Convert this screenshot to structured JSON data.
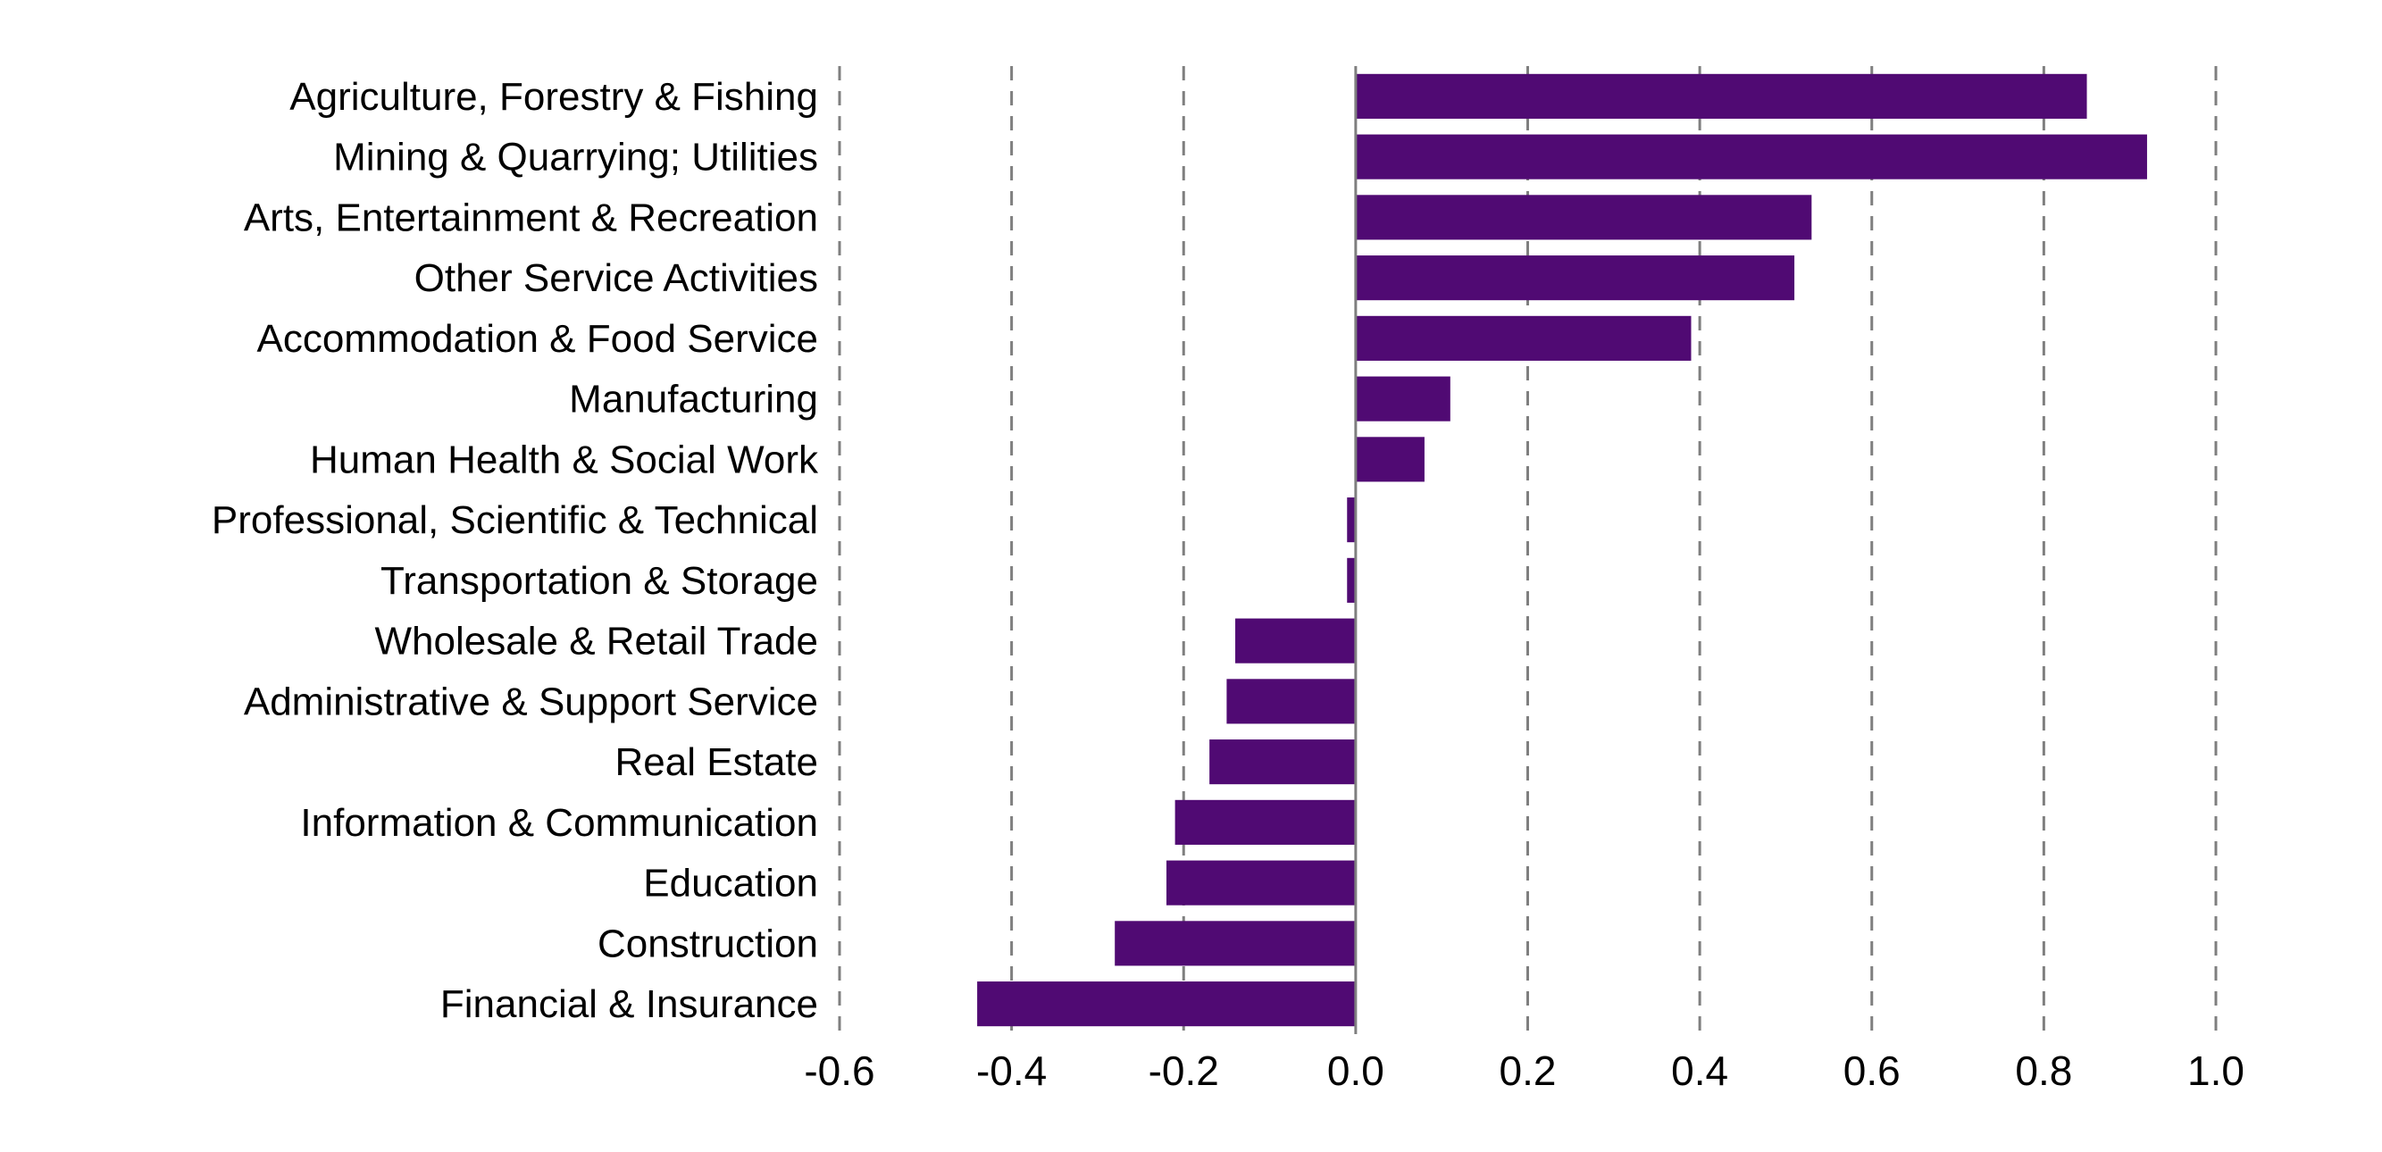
{
  "chart_data": {
    "type": "bar",
    "orientation": "horizontal",
    "title": "",
    "xlabel": "",
    "ylabel": "",
    "xlim": [
      -0.6,
      1.0
    ],
    "x_ticks": [
      "-0.6",
      "-0.4",
      "-0.2",
      "0.0",
      "0.2",
      "0.4",
      "0.6",
      "0.8",
      "1.0"
    ],
    "x_tick_values": [
      -0.6,
      -0.4,
      -0.2,
      0.0,
      0.2,
      0.4,
      0.6,
      0.8,
      1.0
    ],
    "grid": "vertical dashed",
    "legend": "none",
    "bar_color": "#500a73",
    "grid_color": "#7f7f7f",
    "categories": [
      "Agriculture, Forestry & Fishing",
      "Mining & Quarrying; Utilities",
      "Arts, Entertainment & Recreation",
      "Other Service Activities",
      "Accommodation & Food Service",
      "Manufacturing",
      "Human Health & Social Work",
      "Professional, Scientific & Technical",
      "Transportation & Storage",
      "Wholesale & Retail Trade",
      "Administrative & Support Service",
      "Real Estate",
      "Information & Communication",
      "Education",
      "Construction",
      "Financial & Insurance"
    ],
    "values": [
      0.85,
      0.92,
      0.53,
      0.51,
      0.39,
      0.11,
      0.08,
      -0.01,
      -0.01,
      -0.14,
      -0.15,
      -0.17,
      -0.21,
      -0.22,
      -0.28,
      -0.44
    ]
  }
}
